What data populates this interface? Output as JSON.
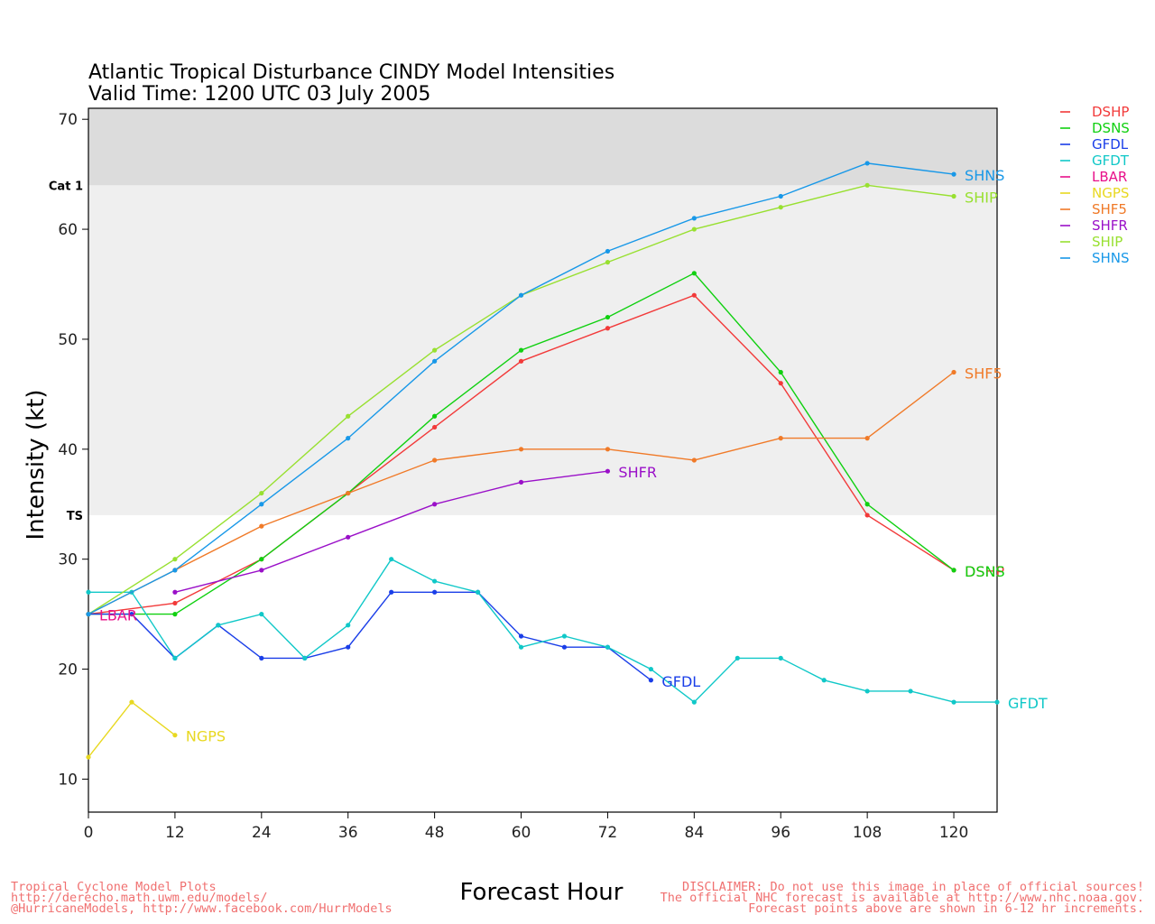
{
  "chart_data": {
    "type": "line",
    "title": "Atlantic Tropical Disturbance CINDY Model Intensities",
    "subtitle": "Valid Time: 1200 UTC 03 July 2005",
    "xlabel": "Forecast Hour",
    "ylabel": "Intensity (kt)",
    "xlim": [
      0,
      126
    ],
    "ylim": [
      7,
      71
    ],
    "xticks": [
      0,
      12,
      24,
      36,
      48,
      60,
      72,
      84,
      96,
      108,
      120
    ],
    "yticks": [
      10,
      20,
      30,
      40,
      50,
      60,
      70
    ],
    "bands": [
      {
        "label": "TS",
        "from": 34,
        "to": 64,
        "color": "#efefef"
      },
      {
        "label": "Cat  1",
        "from": 64,
        "to": 71,
        "color": "#dcdcdc"
      }
    ],
    "grid": false,
    "legend": "right",
    "series": [
      {
        "name": "DSHP",
        "color": "#f23a3a",
        "x": [
          0,
          12,
          24,
          36,
          48,
          60,
          72,
          84,
          96,
          108,
          120
        ],
        "y": [
          25,
          26,
          30,
          36,
          42,
          48,
          51,
          54,
          46,
          34,
          29
        ]
      },
      {
        "name": "DSNS",
        "color": "#10d010",
        "x": [
          0,
          12,
          24,
          36,
          48,
          60,
          72,
          84,
          96,
          108,
          120
        ],
        "y": [
          25,
          25,
          30,
          36,
          43,
          49,
          52,
          56,
          47,
          35,
          29
        ]
      },
      {
        "name": "GFDL",
        "color": "#1a3ee8",
        "x": [
          0,
          6,
          12,
          18,
          24,
          30,
          36,
          42,
          48,
          54,
          60,
          66,
          72,
          78
        ],
        "y": [
          25,
          25,
          21,
          24,
          21,
          21,
          22,
          27,
          27,
          27,
          23,
          22,
          22,
          19
        ]
      },
      {
        "name": "GFDT",
        "color": "#10c8c8",
        "x": [
          0,
          6,
          12,
          18,
          24,
          30,
          36,
          42,
          48,
          54,
          60,
          66,
          72,
          78,
          84,
          90,
          96,
          102,
          108,
          114,
          120,
          126
        ],
        "y": [
          27,
          27,
          21,
          24,
          25,
          21,
          24,
          30,
          28,
          27,
          22,
          23,
          22,
          20,
          17,
          21,
          21,
          19,
          18,
          18,
          17,
          17
        ]
      },
      {
        "name": "LBAR",
        "color": "#e8108a",
        "x": [
          0
        ],
        "y": [
          25
        ]
      },
      {
        "name": "NGPS",
        "color": "#e8d820",
        "x": [
          0,
          6,
          12
        ],
        "y": [
          12,
          17,
          14
        ]
      },
      {
        "name": "SHF5",
        "color": "#f07a28",
        "x": [
          0,
          12,
          24,
          36,
          48,
          60,
          72,
          84,
          96,
          108,
          120
        ],
        "y": [
          25,
          29,
          33,
          36,
          39,
          40,
          40,
          39,
          41,
          41,
          47
        ]
      },
      {
        "name": "SHFR",
        "color": "#9a10c8",
        "x": [
          12,
          24,
          36,
          48,
          60,
          72
        ],
        "y": [
          27,
          29,
          32,
          35,
          37,
          38
        ]
      },
      {
        "name": "SHIP",
        "color": "#98e030",
        "x": [
          0,
          12,
          24,
          36,
          48,
          60,
          72,
          84,
          96,
          108,
          120
        ],
        "y": [
          25,
          30,
          36,
          43,
          49,
          54,
          57,
          60,
          62,
          64,
          63
        ]
      },
      {
        "name": "SHNS",
        "color": "#1898e8",
        "x": [
          0,
          12,
          24,
          36,
          48,
          60,
          72,
          84,
          96,
          108,
          120
        ],
        "y": [
          25,
          29,
          35,
          41,
          48,
          54,
          58,
          61,
          63,
          66,
          65
        ]
      }
    ]
  },
  "footer": {
    "left_lines": [
      "Tropical Cyclone Model Plots",
      "http://derecho.math.uwm.edu/models/",
      "@HurricaneModels, http://www.facebook.com/HurrModels"
    ],
    "right_lines": [
      "DISCLAIMER: Do not use this image in place of official sources!",
      "The official NHC forecast is available at http://www.nhc.noaa.gov.",
      "Forecast points above are shown in 6-12 hr increments."
    ],
    "color": "#f07070"
  }
}
